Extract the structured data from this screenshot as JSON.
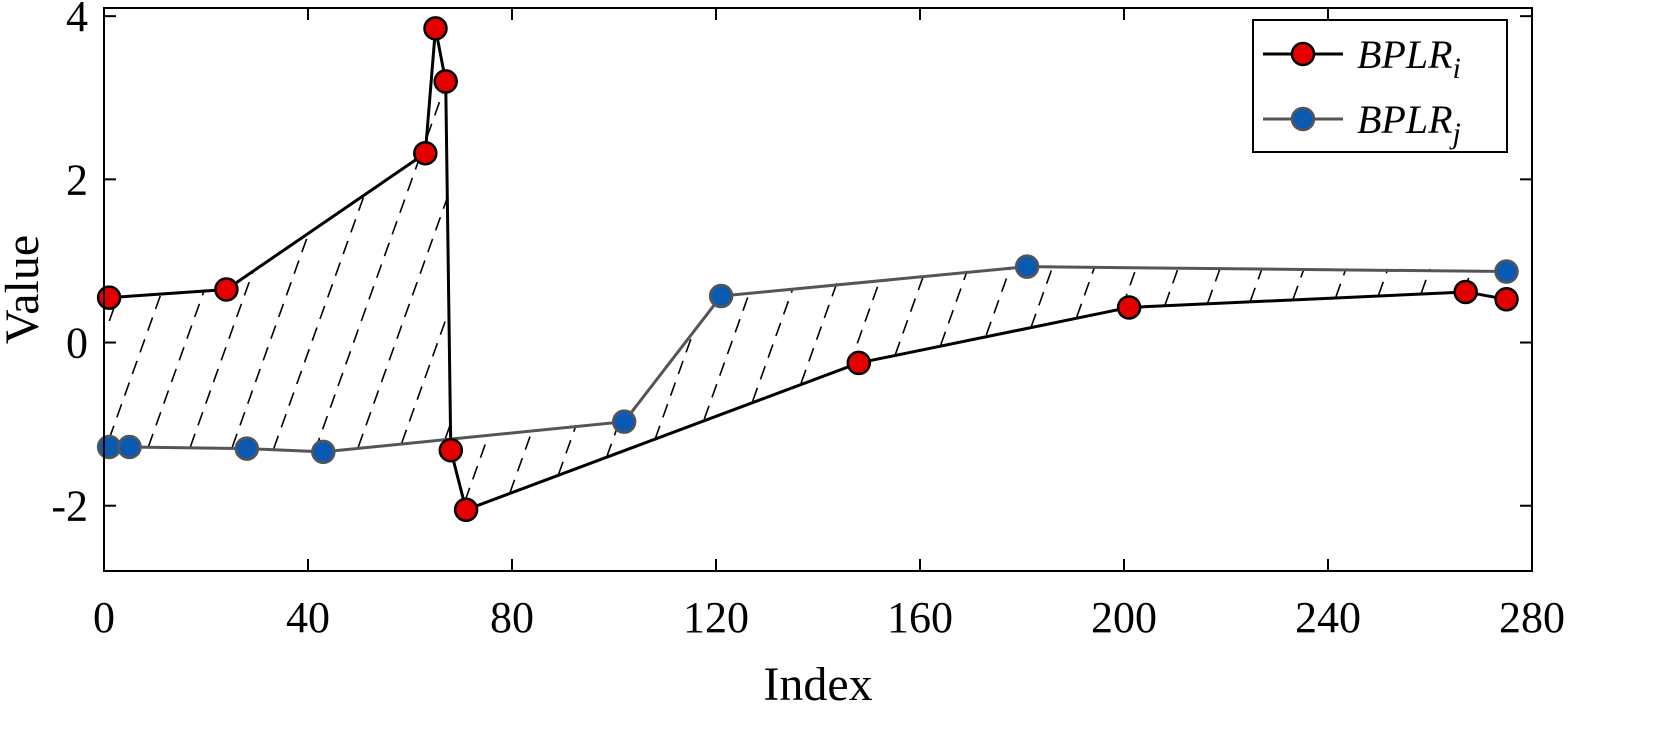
{
  "chart_data": {
    "type": "line",
    "xlabel": "Index",
    "ylabel": "Value",
    "xlim": [
      0,
      280
    ],
    "ylim": [
      -2.8,
      4.1
    ],
    "xticks": [
      0,
      40,
      80,
      120,
      160,
      200,
      240,
      280
    ],
    "yticks": [
      -2,
      0,
      2,
      4
    ],
    "legend_position": "top-right",
    "grid": false,
    "fill_between_series": "dashed-hatch",
    "series": [
      {
        "name": "BPLR",
        "subscript": "i",
        "color": "#000000",
        "marker_color": "#e50000",
        "x": [
          1,
          24,
          63,
          65,
          67,
          68,
          71,
          148,
          201,
          267,
          275
        ],
        "y": [
          0.55,
          0.65,
          2.32,
          3.85,
          3.2,
          -1.32,
          -2.05,
          -0.25,
          0.43,
          0.62,
          0.53
        ]
      },
      {
        "name": "BPLR",
        "subscript": "j",
        "color": "#555555",
        "marker_color": "#0a5ab4",
        "x": [
          1,
          5,
          28,
          43,
          102,
          121,
          181,
          275
        ],
        "y": [
          -1.28,
          -1.28,
          -1.3,
          -1.34,
          -0.97,
          0.57,
          0.93,
          0.87
        ]
      }
    ]
  }
}
